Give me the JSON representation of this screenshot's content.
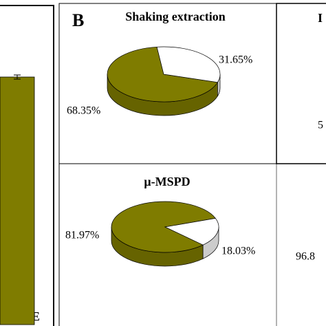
{
  "chart_data": [
    {
      "type": "bar",
      "categories": [
        "-MCE"
      ],
      "color": "#7f7c00"
    },
    {
      "type": "pie",
      "panel": "B",
      "title": "Shaking extraction",
      "values": [
        68.35,
        31.65
      ],
      "value_labels": [
        "68.35%",
        "31.65%"
      ],
      "colors": [
        "#7f7c00",
        "#ffffff"
      ]
    },
    {
      "type": "pie",
      "title": "μ-MSPD",
      "values": [
        81.97,
        18.03
      ],
      "value_labels": [
        "81.97%",
        "18.03%"
      ],
      "colors": [
        "#7f7c00",
        "#ffffff"
      ]
    },
    {
      "type": "pie",
      "title": "I",
      "value_labels": [
        "5",
        "96.8"
      ]
    }
  ]
}
